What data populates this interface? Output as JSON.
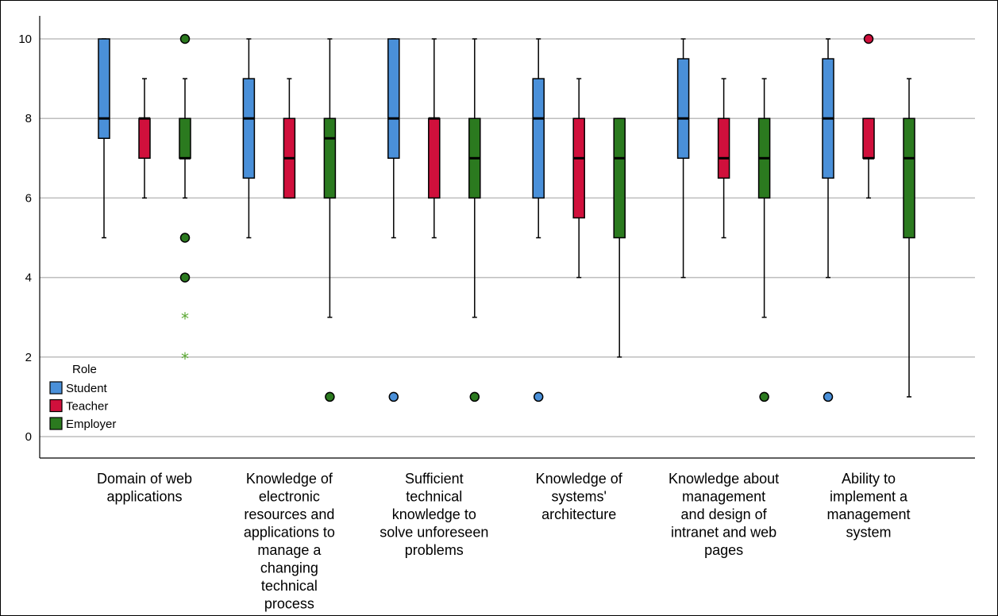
{
  "chart_data": {
    "type": "boxplot",
    "title": "",
    "xlabel": "",
    "ylabel": "",
    "ylim": [
      0,
      10
    ],
    "yticks": [
      0,
      2,
      4,
      6,
      8,
      10
    ],
    "grid": true,
    "legend": {
      "title": "Role",
      "position": "lower-left"
    },
    "series": [
      {
        "name": "Student",
        "color": "#4a90d9"
      },
      {
        "name": "Teacher",
        "color": "#d0103c"
      },
      {
        "name": "Employer",
        "color": "#2b7a1f"
      }
    ],
    "categories": [
      {
        "label": [
          "Domain of web",
          "applications"
        ],
        "boxes": [
          {
            "min": 5,
            "q1": 7.5,
            "median": 8,
            "q3": 10,
            "max": 10,
            "outliers": [],
            "extremes": []
          },
          {
            "min": 6,
            "q1": 7,
            "median": 8,
            "q3": 8,
            "max": 9,
            "outliers": [],
            "extremes": []
          },
          {
            "min": 6,
            "q1": 7,
            "median": 7,
            "q3": 8,
            "max": 9,
            "outliers": [
              10,
              5,
              4
            ],
            "extremes": [
              3,
              2
            ]
          }
        ]
      },
      {
        "label": [
          "Knowledge of",
          "electronic",
          "resources and",
          "applications to",
          "manage a",
          "changing",
          "technical",
          "process"
        ],
        "boxes": [
          {
            "min": 5,
            "q1": 6.5,
            "median": 8,
            "q3": 9,
            "max": 10,
            "outliers": [],
            "extremes": []
          },
          {
            "min": 6,
            "q1": 6,
            "median": 7,
            "q3": 8,
            "max": 9,
            "outliers": [],
            "extremes": []
          },
          {
            "min": 3,
            "q1": 6,
            "median": 7.5,
            "q3": 8,
            "max": 10,
            "outliers": [
              1
            ],
            "extremes": []
          }
        ]
      },
      {
        "label": [
          "Sufficient",
          "technical",
          "knowledge to",
          "solve unforeseen",
          "problems"
        ],
        "boxes": [
          {
            "min": 5,
            "q1": 7,
            "median": 8,
            "q3": 10,
            "max": 10,
            "outliers": [
              1
            ],
            "extremes": []
          },
          {
            "min": 5,
            "q1": 6,
            "median": 8,
            "q3": 8,
            "max": 10,
            "outliers": [],
            "extremes": []
          },
          {
            "min": 3,
            "q1": 6,
            "median": 7,
            "q3": 8,
            "max": 10,
            "outliers": [
              1
            ],
            "extremes": []
          }
        ]
      },
      {
        "label": [
          "Knowledge of",
          "systems'",
          "architecture"
        ],
        "boxes": [
          {
            "min": 5,
            "q1": 6,
            "median": 8,
            "q3": 9,
            "max": 10,
            "outliers": [
              1
            ],
            "extremes": []
          },
          {
            "min": 4,
            "q1": 5.5,
            "median": 7,
            "q3": 8,
            "max": 9,
            "outliers": [],
            "extremes": []
          },
          {
            "min": 2,
            "q1": 5,
            "median": 7,
            "q3": 8,
            "max": 8,
            "outliers": [],
            "extremes": []
          }
        ]
      },
      {
        "label": [
          "Knowledge about",
          "management",
          "and design of",
          "intranet and web",
          "pages"
        ],
        "boxes": [
          {
            "min": 4,
            "q1": 7,
            "median": 8,
            "q3": 9.5,
            "max": 10,
            "outliers": [],
            "extremes": []
          },
          {
            "min": 5,
            "q1": 6.5,
            "median": 7,
            "q3": 8,
            "max": 9,
            "outliers": [],
            "extremes": []
          },
          {
            "min": 3,
            "q1": 6,
            "median": 7,
            "q3": 8,
            "max": 9,
            "outliers": [
              1
            ],
            "extremes": []
          }
        ]
      },
      {
        "label": [
          "Ability to",
          "implement a",
          "management",
          "system"
        ],
        "boxes": [
          {
            "min": 4,
            "q1": 6.5,
            "median": 8,
            "q3": 9.5,
            "max": 10,
            "outliers": [
              1
            ],
            "extremes": []
          },
          {
            "min": 6,
            "q1": 7,
            "median": 7,
            "q3": 8,
            "max": 8,
            "outliers": [
              10
            ],
            "extremes": []
          },
          {
            "min": 1,
            "q1": 5,
            "median": 7,
            "q3": 8,
            "max": 9,
            "outliers": [],
            "extremes": []
          }
        ]
      }
    ]
  }
}
